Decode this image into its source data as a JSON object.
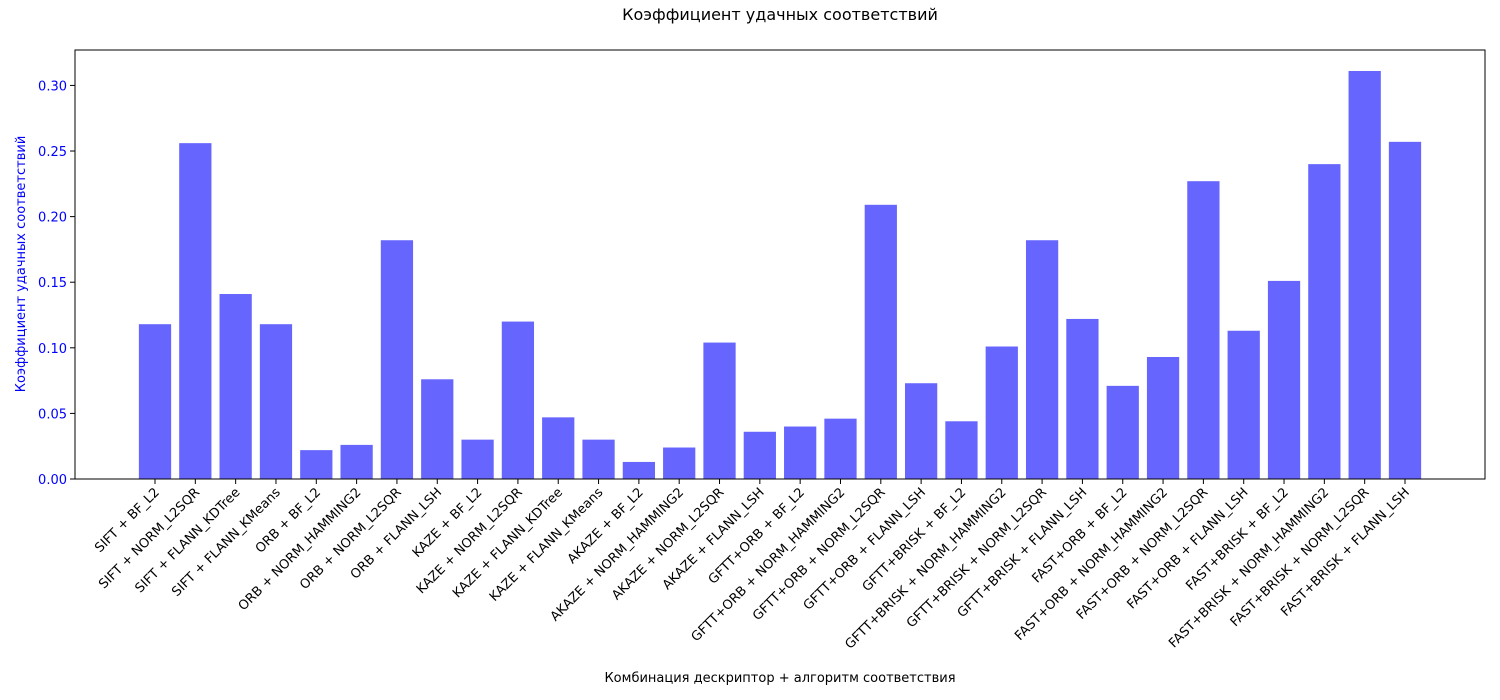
{
  "chart_data": {
    "type": "bar",
    "title": "Коэффициент удачных соответствий",
    "xlabel": "Комбинация дескриптор + алгоритм соответствия",
    "ylabel": "Коэффициент удачных соответствий",
    "ylim": [
      0,
      0.327
    ],
    "yticks": [
      {
        "value": 0.0,
        "label": "0.00"
      },
      {
        "value": 0.05,
        "label": "0.05"
      },
      {
        "value": 0.1,
        "label": "0.10"
      },
      {
        "value": 0.15,
        "label": "0.15"
      },
      {
        "value": 0.2,
        "label": "0.20"
      },
      {
        "value": 0.25,
        "label": "0.25"
      },
      {
        "value": 0.3,
        "label": "0.30"
      }
    ],
    "categories": [
      "SIFT + BF_L2",
      "SIFT + NORM_L2SQR",
      "SIFT + FLANN_KDTree",
      "SIFT + FLANN_KMeans",
      "ORB + BF_L2",
      "ORB + NORM_HAMMING2",
      "ORB + NORM_L2SQR",
      "ORB + FLANN_LSH",
      "KAZE + BF_L2",
      "KAZE + NORM_L2SQR",
      "KAZE + FLANN_KDTree",
      "KAZE + FLANN_KMeans",
      "AKAZE + BF_L2",
      "AKAZE + NORM_HAMMING2",
      "AKAZE + NORM_L2SQR",
      "AKAZE + FLANN_LSH",
      "GFTT+ORB + BF_L2",
      "GFTT+ORB + NORM_HAMMING2",
      "GFTT+ORB + NORM_L2SQR",
      "GFTT+ORB + FLANN_LSH",
      "GFTT+BRISK + BF_L2",
      "GFTT+BRISK + NORM_HAMMING2",
      "GFTT+BRISK + NORM_L2SQR",
      "GFTT+BRISK + FLANN_LSH",
      "FAST+ORB + BF_L2",
      "FAST+ORB + NORM_HAMMING2",
      "FAST+ORB + NORM_L2SQR",
      "FAST+ORB + FLANN_LSH",
      "FAST+BRISK + BF_L2",
      "FAST+BRISK + NORM_HAMMING2",
      "FAST+BRISK + NORM_L2SQR",
      "FAST+BRISK + FLANN_LSH"
    ],
    "values": [
      0.118,
      0.256,
      0.141,
      0.118,
      0.022,
      0.026,
      0.182,
      0.076,
      0.03,
      0.12,
      0.047,
      0.03,
      0.013,
      0.024,
      0.104,
      0.036,
      0.04,
      0.046,
      0.209,
      0.073,
      0.044,
      0.101,
      0.182,
      0.122,
      0.071,
      0.093,
      0.227,
      0.113,
      0.151,
      0.24,
      0.311,
      0.257
    ],
    "colors": {
      "bar": "#6666ff",
      "ylabel": "#0000ff",
      "yticks": "#0000ff",
      "text": "#000000"
    },
    "grid": false,
    "legend": "none"
  }
}
